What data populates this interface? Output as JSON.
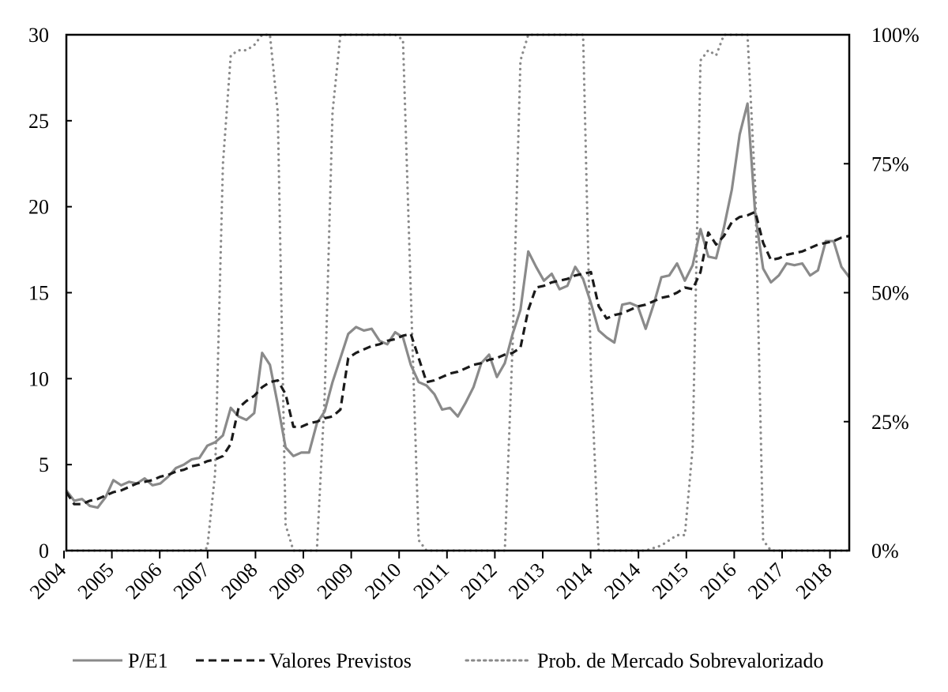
{
  "chart_data": {
    "type": "line",
    "title": "",
    "xlabel": "",
    "ylabel": "",
    "x_tick_labels": [
      "2004",
      "2005",
      "2006",
      "2007",
      "2008",
      "2009",
      "2009",
      "2010",
      "2011",
      "2012",
      "2013",
      "2014",
      "2014",
      "2015",
      "2016",
      "2017",
      "2018"
    ],
    "y_left": {
      "range": [
        0,
        30
      ],
      "ticks": [
        0,
        5,
        10,
        15,
        20,
        25,
        30
      ],
      "tick_labels": [
        "0",
        "5",
        "10",
        "15",
        "20",
        "25",
        "30"
      ]
    },
    "y_right": {
      "range": [
        0,
        100
      ],
      "ticks": [
        0,
        25,
        50,
        75,
        100
      ],
      "tick_labels": [
        "0%",
        "25%",
        "50%",
        "75%",
        "100%"
      ]
    },
    "grid": false,
    "legend_placement": "bottom",
    "series": [
      {
        "name": "P/E1",
        "axis": "left",
        "style": "solid",
        "color": "#8a8a8a",
        "values": [
          3.5,
          2.9,
          3.0,
          2.6,
          2.5,
          3.1,
          4.1,
          3.8,
          4.0,
          3.9,
          4.2,
          3.8,
          3.9,
          4.3,
          4.8,
          5.0,
          5.3,
          5.4,
          6.1,
          6.3,
          6.7,
          8.3,
          7.8,
          7.6,
          8.0,
          11.5,
          10.8,
          8.5,
          6.0,
          5.5,
          5.7,
          5.7,
          7.4,
          8.1,
          9.8,
          11.2,
          12.6,
          13.0,
          12.8,
          12.9,
          12.2,
          12.0,
          12.7,
          12.4,
          10.8,
          9.8,
          9.6,
          9.1,
          8.2,
          8.3,
          7.8,
          8.6,
          9.5,
          10.9,
          11.4,
          10.1,
          10.9,
          12.6,
          14.0,
          17.4,
          16.5,
          15.7,
          16.1,
          15.2,
          15.4,
          16.5,
          15.8,
          14.4,
          12.8,
          12.4,
          12.1,
          14.3,
          14.4,
          14.2,
          12.9,
          14.3,
          15.9,
          16.0,
          16.7,
          15.7,
          16.6,
          18.7,
          17.1,
          17.0,
          18.8,
          21.0,
          24.2,
          26.0,
          19.5,
          16.4,
          15.6,
          16.0,
          16.7,
          16.6,
          16.7,
          16.0,
          16.3,
          18.0,
          18.0,
          16.5,
          15.9
        ]
      },
      {
        "name": "Valores Previstos",
        "axis": "left",
        "style": "dashed",
        "color": "#1a1a1a",
        "values": [
          3.4,
          2.7,
          2.7,
          2.9,
          3.0,
          3.2,
          3.4,
          3.5,
          3.7,
          3.9,
          4.0,
          4.1,
          4.3,
          4.4,
          4.6,
          4.7,
          4.9,
          5.0,
          5.2,
          5.3,
          5.5,
          6.2,
          8.3,
          8.7,
          9.0,
          9.5,
          9.8,
          9.9,
          9.1,
          7.2,
          7.2,
          7.4,
          7.5,
          7.7,
          7.8,
          8.2,
          11.2,
          11.5,
          11.7,
          11.9,
          12.0,
          12.2,
          12.3,
          12.5,
          12.6,
          11.2,
          9.8,
          9.9,
          10.1,
          10.3,
          10.4,
          10.6,
          10.8,
          10.9,
          11.1,
          11.2,
          11.4,
          11.5,
          11.8,
          14.0,
          15.3,
          15.4,
          15.6,
          15.7,
          15.8,
          16.0,
          16.1,
          16.2,
          14.2,
          13.5,
          13.7,
          13.8,
          14.0,
          14.2,
          14.3,
          14.5,
          14.7,
          14.8,
          15.0,
          15.3,
          15.2,
          16.2,
          18.5,
          17.8,
          18.3,
          19.1,
          19.4,
          19.5,
          19.7,
          17.9,
          16.9,
          17.0,
          17.2,
          17.3,
          17.4,
          17.6,
          17.8,
          17.9,
          18.0,
          18.2,
          18.3
        ]
      },
      {
        "name": "Prob. de Mercado Sobrevalorizado",
        "axis": "right",
        "unit": "%",
        "style": "dotted",
        "color": "#8a8a8a",
        "values": [
          0,
          0,
          0,
          0,
          0,
          0,
          0,
          0,
          0,
          0,
          0,
          0,
          0,
          0,
          0,
          0,
          0,
          0,
          0.5,
          15,
          75,
          96,
          97,
          97,
          98,
          100,
          100,
          85,
          5,
          0,
          0,
          0,
          0,
          30,
          85,
          100,
          100,
          100,
          100,
          100,
          100,
          100,
          100,
          99,
          50,
          2,
          0,
          0,
          0,
          0,
          0,
          0,
          0,
          0,
          0,
          0,
          0,
          40,
          95,
          100,
          100,
          100,
          100,
          100,
          100,
          100,
          100,
          35,
          0,
          0,
          0,
          0,
          0,
          0,
          0,
          0.5,
          1,
          2,
          3,
          3,
          20,
          95,
          97,
          96,
          100,
          100,
          100,
          100,
          70,
          2,
          0,
          0,
          0,
          0,
          0,
          0,
          0,
          0,
          0,
          0,
          0
        ]
      }
    ]
  }
}
